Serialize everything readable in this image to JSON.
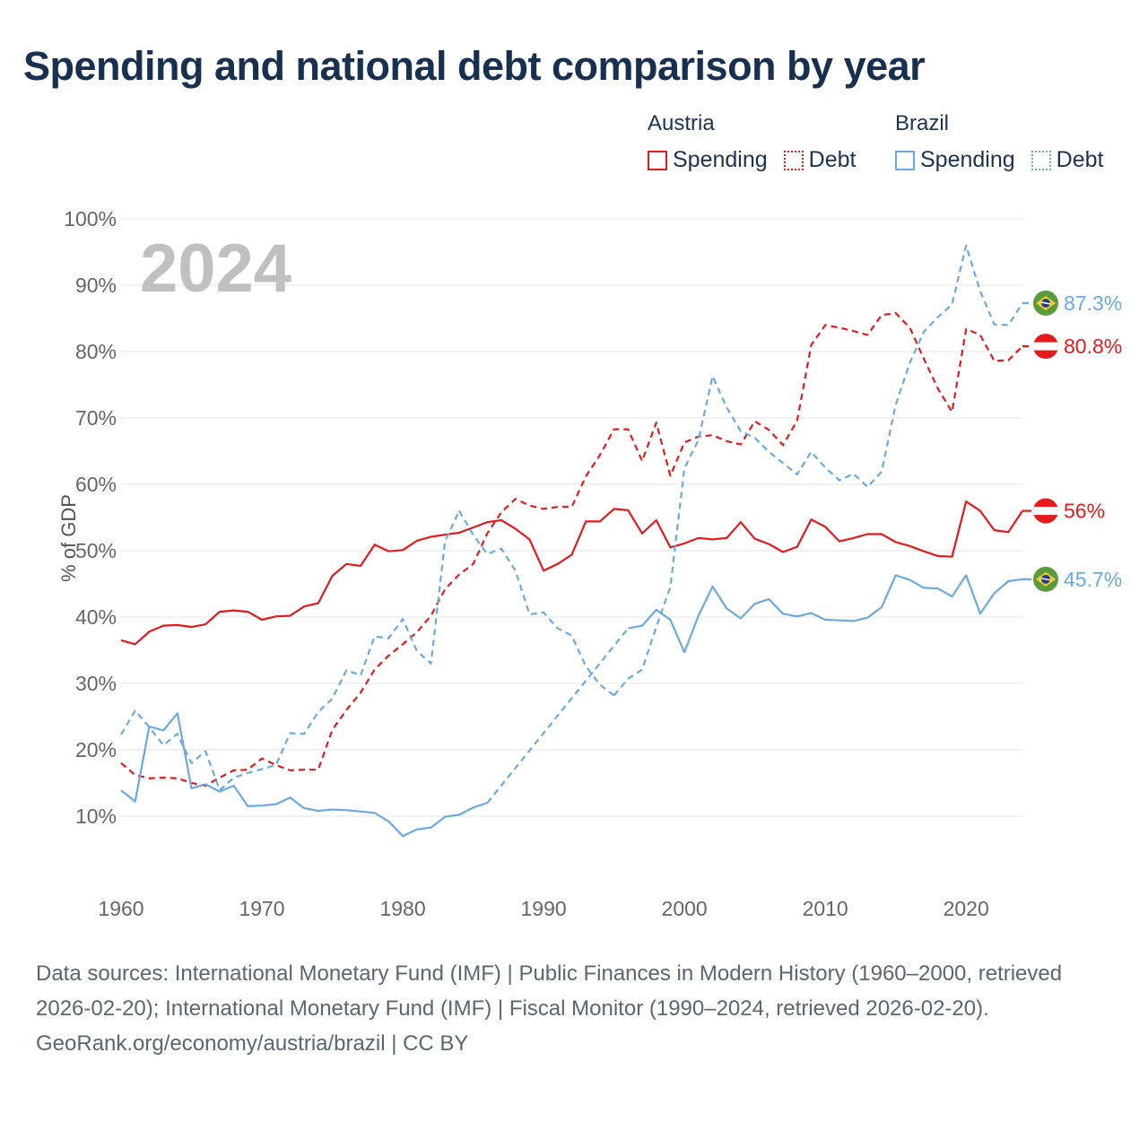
{
  "title": "Spending and national debt comparison by year",
  "legend": {
    "groups": [
      {
        "country": "Austria",
        "items": [
          {
            "label": "Spending"
          },
          {
            "label": "Debt"
          }
        ]
      },
      {
        "country": "Brazil",
        "items": [
          {
            "label": "Spending"
          },
          {
            "label": "Debt"
          }
        ]
      }
    ]
  },
  "colors": {
    "austria": "#e41a1c",
    "brazil": "#6aaae4",
    "grid": "#e6e6e6",
    "tick": "#666666",
    "year": "#c0c0c0"
  },
  "footer": {
    "sources": "Data sources: International Monetary Fund (IMF) | Public Finances in Modern History (1960–2000, retrieved 2026-02-20); International Monetary Fund (IMF) | Fiscal Monitor (1990–2024, retrieved 2026-02-20).",
    "credit": "GeoRank.org/economy/austria/brazil | CC BY"
  },
  "chart_data": {
    "type": "line",
    "title": "Spending and national debt comparison by year",
    "year_label": "2024",
    "ylabel": "% of GDP",
    "xlabel": "",
    "xlim": [
      1960,
      2024
    ],
    "ylim": [
      0,
      100
    ],
    "x_ticks": [
      "1960",
      "1970",
      "1980",
      "1990",
      "2000",
      "2010",
      "2020"
    ],
    "y_ticks": [
      "10%",
      "20%",
      "30%",
      "40%",
      "50%",
      "60%",
      "70%",
      "80%",
      "90%",
      "100%"
    ],
    "grid": true,
    "x_start": 1960,
    "series": [
      {
        "name": "Austria Spending",
        "country": "Austria",
        "metric": "Spending",
        "style": "solid",
        "color": "#e41a1c",
        "end_label": "56%",
        "flag": "austria",
        "values": [
          36.5,
          35.9,
          37.8,
          38.7,
          38.8,
          38.5,
          38.9,
          40.8,
          41.0,
          40.8,
          39.6,
          40.1,
          40.2,
          41.6,
          42.1,
          46.2,
          48.0,
          47.7,
          50.9,
          49.9,
          50.1,
          51.5,
          52.1,
          52.4,
          52.7,
          53.5,
          54.3,
          54.6,
          53.3,
          51.7,
          47.0,
          48.0,
          49.4,
          54.4,
          54.4,
          56.3,
          56.1,
          52.6,
          54.6,
          50.5,
          51.1,
          51.9,
          51.7,
          51.9,
          54.3,
          51.8,
          51.0,
          49.8,
          50.6,
          54.7,
          53.6,
          51.4,
          51.9,
          52.5,
          52.5,
          51.3,
          50.7,
          49.9,
          49.2,
          49.1,
          57.4,
          56.0,
          53.1,
          52.8,
          56.0
        ]
      },
      {
        "name": "Austria Debt",
        "country": "Austria",
        "metric": "Debt",
        "style": "dashed",
        "color": "#e41a1c",
        "end_label": "80.8%",
        "flag": "austria",
        "values": [
          18.0,
          16.2,
          15.7,
          15.8,
          15.7,
          15.0,
          14.6,
          15.8,
          16.9,
          17.0,
          18.7,
          17.7,
          16.9,
          17.0,
          17.0,
          23.0,
          26.0,
          28.6,
          32.1,
          34.2,
          35.9,
          37.7,
          40.2,
          44.2,
          46.4,
          48.0,
          52.6,
          55.8,
          57.8,
          56.8,
          56.3,
          56.6,
          56.6,
          61.2,
          64.4,
          68.3,
          68.3,
          63.5,
          69.3,
          61.3,
          66.3,
          67.2,
          67.4,
          66.5,
          66.0,
          69.5,
          68.2,
          65.9,
          69.6,
          81.0,
          84.0,
          83.6,
          83.1,
          82.5,
          85.5,
          85.8,
          83.6,
          78.9,
          74.4,
          70.9,
          83.4,
          82.5,
          78.6,
          78.7,
          80.8
        ]
      },
      {
        "name": "Brazil Spending",
        "country": "Brazil",
        "metric": "Spending",
        "style": "solid",
        "color": "#6aaae4",
        "end_label": "45.7%",
        "flag": "brazil",
        "values": [
          13.9,
          12.2,
          23.5,
          22.9,
          25.5,
          14.2,
          14.8,
          13.7,
          14.6,
          11.5,
          11.6,
          11.8,
          12.8,
          11.2,
          10.8,
          11.0,
          10.9,
          10.7,
          10.5,
          9.2,
          7.0,
          8.0,
          8.3,
          9.9,
          10.2,
          11.3,
          12.0,
          null,
          null,
          null,
          null,
          null,
          null,
          null,
          null,
          null,
          38.3,
          38.7,
          41.1,
          39.6,
          34.7,
          40.2,
          44.6,
          41.3,
          39.8,
          42.0,
          42.7,
          40.5,
          40.1,
          40.6,
          39.6,
          39.5,
          39.4,
          39.9,
          41.5,
          46.3,
          45.6,
          44.4,
          44.3,
          43.1,
          46.3,
          40.5,
          43.6,
          45.4,
          45.7
        ]
      },
      {
        "name": "Brazil Debt",
        "country": "Brazil",
        "metric": "Debt",
        "style": "dashed",
        "color": "#6aaae4",
        "end_label": "87.3%",
        "flag": "brazil",
        "values": [
          22.3,
          25.9,
          23.4,
          20.7,
          22.4,
          18.0,
          19.8,
          13.9,
          15.8,
          16.5,
          17.1,
          17.7,
          22.5,
          22.4,
          25.7,
          27.7,
          32.0,
          31.2,
          37.1,
          36.8,
          39.7,
          34.9,
          33.0,
          51.4,
          56.0,
          null,
          null,
          null,
          null,
          null,
          null,
          null,
          null,
          null,
          null,
          28.2,
          30.7,
          32.1,
          38.5,
          44.5,
          62.4,
          66.7,
          76.3,
          71.6,
          68.0,
          67.0,
          64.9,
          63.2,
          61.5,
          64.9,
          62.5,
          60.6,
          61.6,
          59.6,
          61.9,
          72.0,
          78.3,
          83.0,
          85.2,
          87.1,
          96.0,
          89.1,
          84.1,
          84.0,
          87.3
        ]
      }
    ],
    "connectors": [
      {
        "series": "Brazil Debt",
        "from": [
          1984,
          56.0
        ],
        "to": [
          1995,
          28.2
        ],
        "via": [
          [
            1985,
            52.4
          ],
          [
            1986,
            49.5
          ],
          [
            1987,
            50.3
          ],
          [
            1988,
            47.0
          ],
          [
            1989,
            40.4
          ],
          [
            1990,
            40.7
          ],
          [
            1991,
            38.3
          ],
          [
            1992,
            37.2
          ],
          [
            1993,
            32.6
          ],
          [
            1994,
            29.8
          ]
        ]
      },
      {
        "series": "Brazil Spending",
        "from": [
          1986,
          12.0
        ],
        "to": [
          1996,
          38.3
        ]
      }
    ]
  }
}
